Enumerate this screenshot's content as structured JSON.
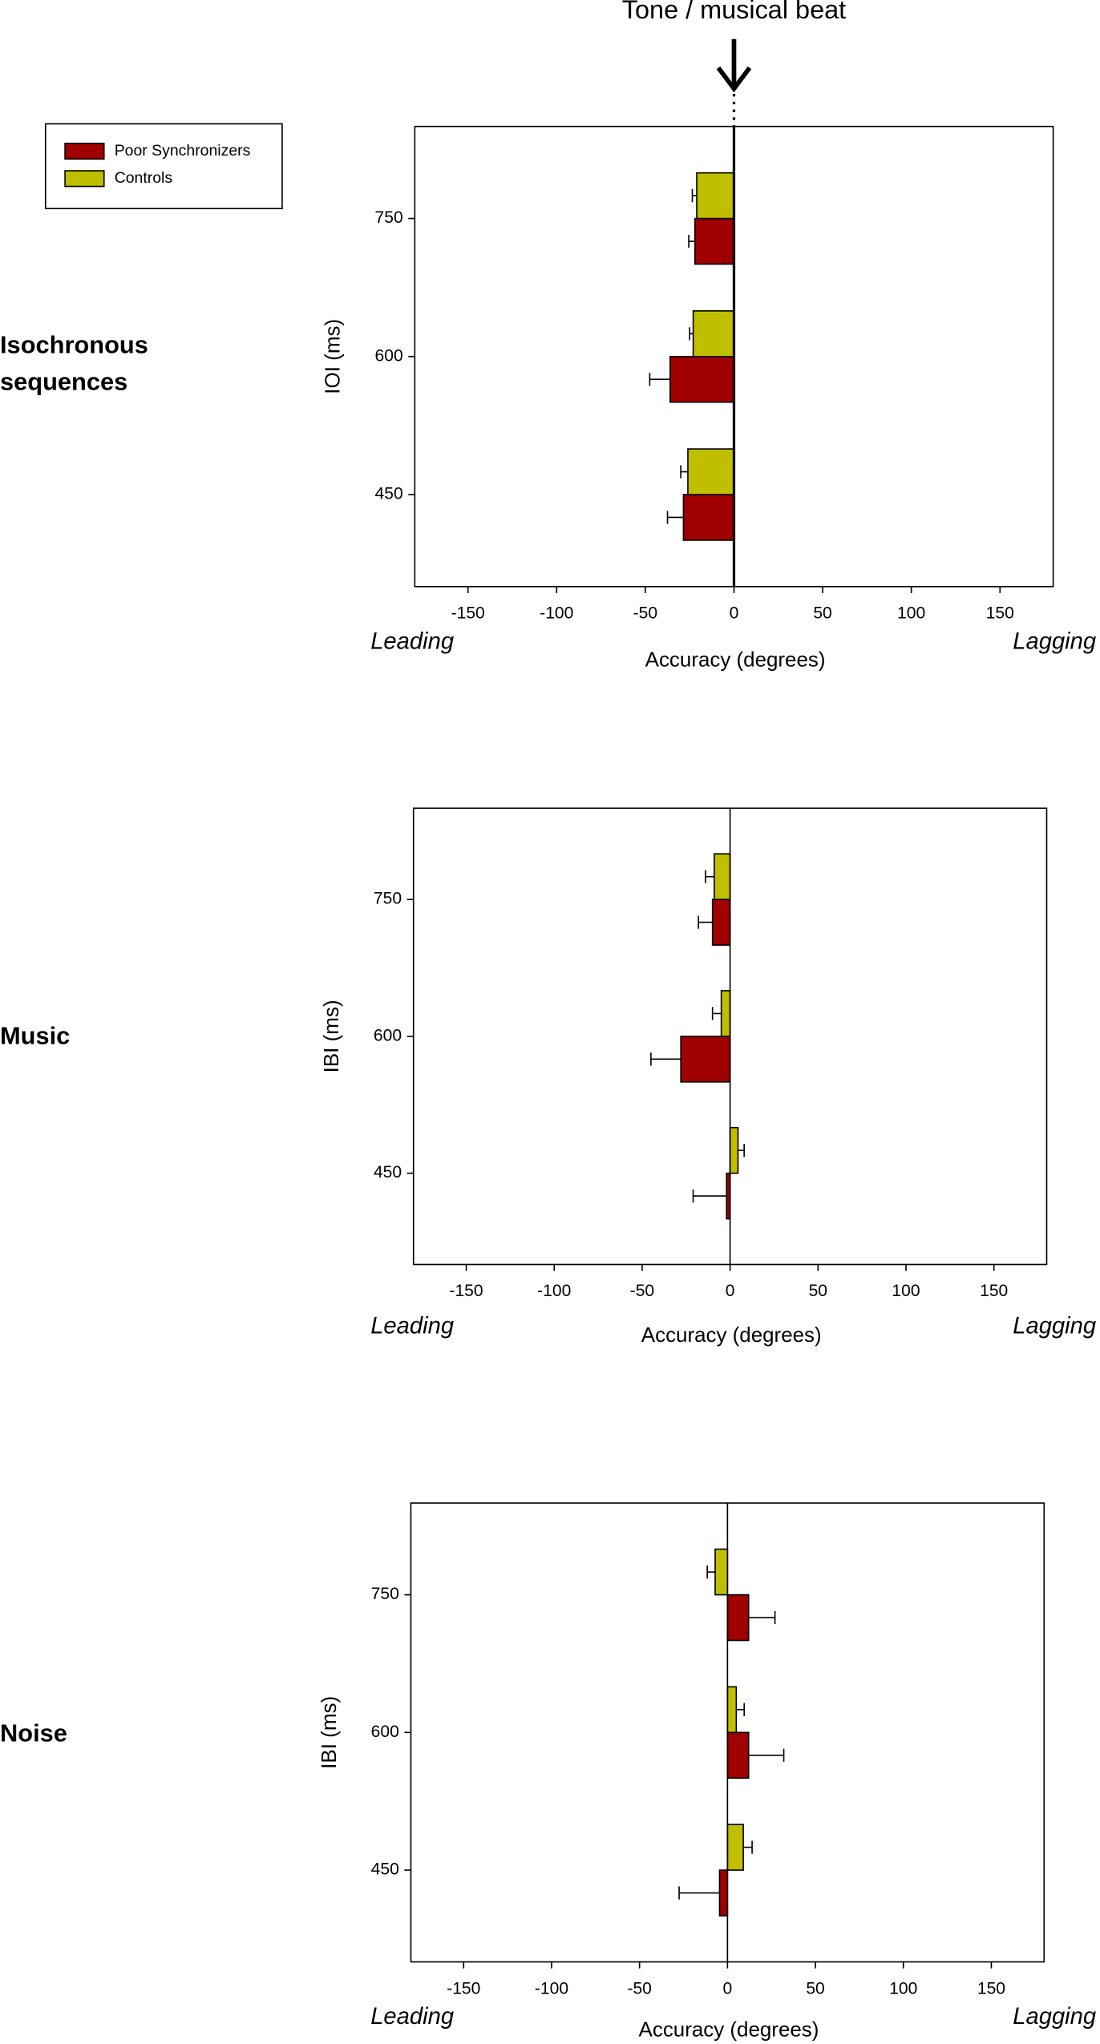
{
  "chart_data": [
    {
      "type": "bar",
      "orientation": "horizontal",
      "label": "Isochronous sequences",
      "annotation": "Tone / musical beat",
      "xlabel": "Accuracy (degrees)",
      "ylabel": "IOI (ms)",
      "left_note": "Leading",
      "right_note": "Lagging",
      "y": [
        750,
        600,
        450
      ],
      "series": [
        {
          "name": "Poor Synchronizers",
          "color": "#a00000",
          "values": [
            -22,
            -36,
            -28.5
          ],
          "errors": [
            3.5,
            11.5,
            9
          ]
        },
        {
          "name": "Controls",
          "color": "#bfbf00",
          "values": [
            -21,
            -23,
            -26
          ],
          "errors": [
            2.5,
            2,
            4
          ]
        }
      ],
      "xlim": [
        -180,
        180
      ],
      "xticks": [
        -150,
        -100,
        -50,
        0,
        50,
        100,
        150
      ],
      "ylim": [
        350,
        850
      ],
      "yticks": [
        450,
        600,
        750
      ],
      "legend": "top-left",
      "zero_line_bold": true
    },
    {
      "type": "bar",
      "orientation": "horizontal",
      "label": "Music",
      "xlabel": "Accuracy (degrees)",
      "ylabel": "IBI (ms)",
      "left_note": "Leading",
      "right_note": "Lagging",
      "y": [
        750,
        600,
        450
      ],
      "series": [
        {
          "name": "Poor Synchronizers",
          "color": "#a00000",
          "values": [
            -10,
            -28,
            -2
          ],
          "errors": [
            8,
            17,
            19
          ]
        },
        {
          "name": "Controls",
          "color": "#bfbf00",
          "values": [
            -9,
            -5,
            4.5
          ],
          "errors": [
            5,
            5,
            3.5
          ]
        }
      ],
      "xlim": [
        -180,
        180
      ],
      "xticks": [
        -150,
        -100,
        -50,
        0,
        50,
        100,
        150
      ],
      "ylim": [
        350,
        850
      ],
      "yticks": [
        450,
        600,
        750
      ]
    },
    {
      "type": "bar",
      "orientation": "horizontal",
      "label": "Noise",
      "xlabel": "Accuracy (degrees)",
      "ylabel": "IBI (ms)",
      "left_note": "Leading",
      "right_note": "Lagging",
      "y": [
        750,
        600,
        450
      ],
      "series": [
        {
          "name": "Poor Synchronizers",
          "color": "#a00000",
          "values": [
            12,
            12,
            -4.5
          ],
          "errors": [
            15,
            20,
            23
          ]
        },
        {
          "name": "Controls",
          "color": "#bfbf00",
          "values": [
            -7,
            5,
            9
          ],
          "errors": [
            4.5,
            4.5,
            5
          ]
        }
      ],
      "xlim": [
        -180,
        180
      ],
      "xticks": [
        -150,
        -100,
        -50,
        0,
        50,
        100,
        150
      ],
      "ylim": [
        350,
        850
      ],
      "yticks": [
        450,
        600,
        750
      ]
    }
  ]
}
